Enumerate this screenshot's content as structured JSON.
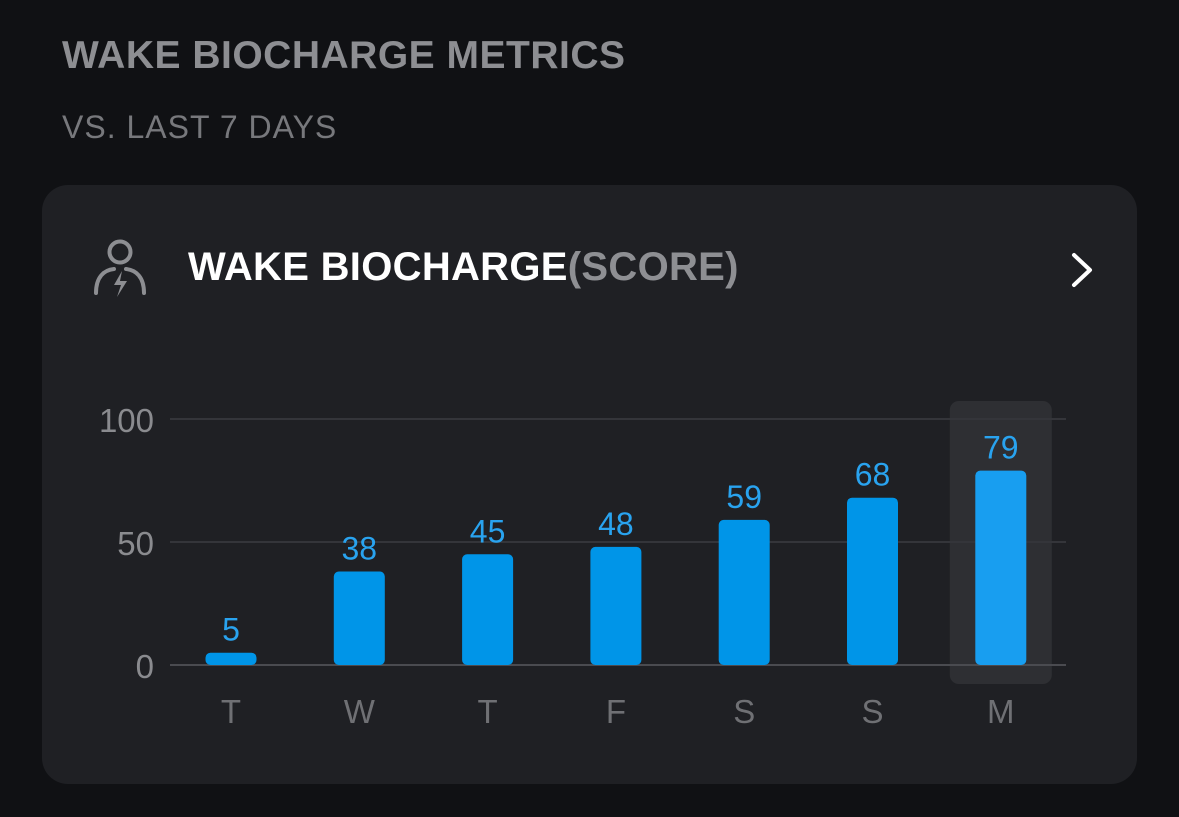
{
  "header": {
    "title": "WAKE BIOCHARGE METRICS",
    "subtitle": "VS. LAST 7 DAYS"
  },
  "card": {
    "title": "WAKE BIOCHARGE",
    "unit": "(SCORE)",
    "icon": "person-charge-icon",
    "action_icon": "chevron-right-icon"
  },
  "colors": {
    "bar": "#0095e8",
    "bar_highlight": "#189ef0",
    "highlight_bg": "#2e2f33",
    "value_label": "#29a3ef",
    "tick_label": "#8a8b8f"
  },
  "chart_data": {
    "type": "bar",
    "categories": [
      "T",
      "W",
      "T",
      "F",
      "S",
      "S",
      "M"
    ],
    "values": [
      5,
      38,
      45,
      48,
      59,
      68,
      79
    ],
    "ylim": [
      0,
      100
    ],
    "yticks": [
      0,
      50,
      100
    ],
    "highlight_index": 6,
    "grid": true
  }
}
